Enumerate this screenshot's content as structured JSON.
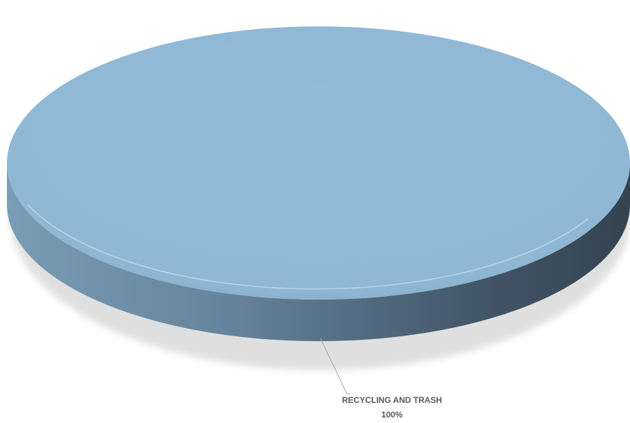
{
  "chart_data": {
    "type": "pie",
    "title": "",
    "categories": [
      "RECYCLING AND TRASH"
    ],
    "values": [
      100
    ],
    "data_labels": [
      {
        "category": "RECYCLING AND TRASH",
        "percent": "100%"
      }
    ],
    "colors": {
      "top": "#92bad6",
      "side_light": "#7a9cb5",
      "side_dark": "#34434f",
      "leader_line": "#a6a6a6",
      "label_text": "#595959"
    },
    "style": "3d"
  }
}
